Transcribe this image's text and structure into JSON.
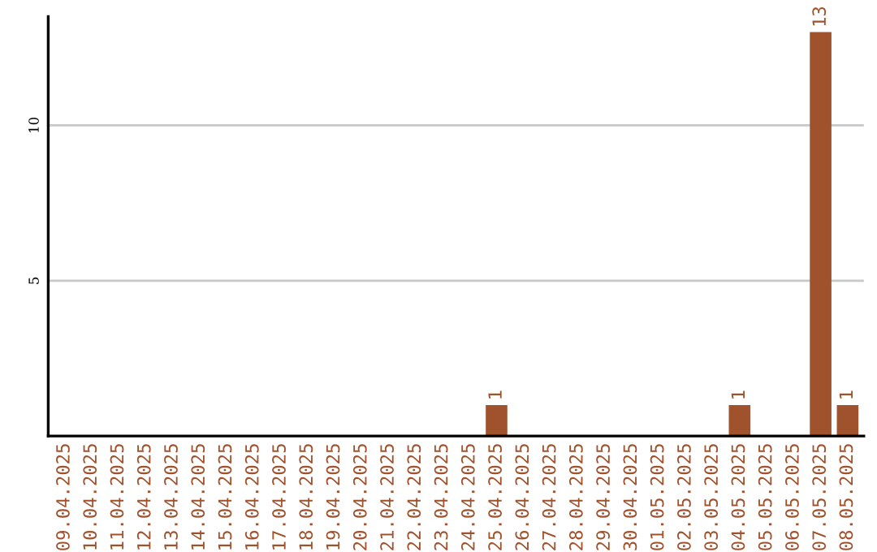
{
  "chart_data": {
    "type": "bar",
    "categories": [
      "09.04.2025",
      "10.04.2025",
      "11.04.2025",
      "12.04.2025",
      "13.04.2025",
      "14.04.2025",
      "15.04.2025",
      "16.04.2025",
      "17.04.2025",
      "18.04.2025",
      "19.04.2025",
      "20.04.2025",
      "21.04.2025",
      "22.04.2025",
      "23.04.2025",
      "24.04.2025",
      "25.04.2025",
      "26.04.2025",
      "27.04.2025",
      "28.04.2025",
      "29.04.2025",
      "30.04.2025",
      "01.05.2025",
      "02.05.2025",
      "03.05.2025",
      "04.05.2025",
      "05.05.2025",
      "06.05.2025",
      "07.05.2025",
      "08.05.2025"
    ],
    "values": [
      0,
      0,
      0,
      0,
      0,
      0,
      0,
      0,
      0,
      0,
      0,
      0,
      0,
      0,
      0,
      0,
      1,
      0,
      0,
      0,
      0,
      0,
      0,
      0,
      0,
      1,
      0,
      0,
      13,
      1
    ],
    "value_labels": [
      null,
      null,
      null,
      null,
      null,
      null,
      null,
      null,
      null,
      null,
      null,
      null,
      null,
      null,
      null,
      null,
      "1",
      null,
      null,
      null,
      null,
      null,
      null,
      null,
      null,
      "1",
      null,
      null,
      "13",
      "1"
    ],
    "color": "#a0522d",
    "ylim": [
      0,
      13.5
    ],
    "yticks": [
      5,
      10
    ],
    "grid": "y"
  }
}
